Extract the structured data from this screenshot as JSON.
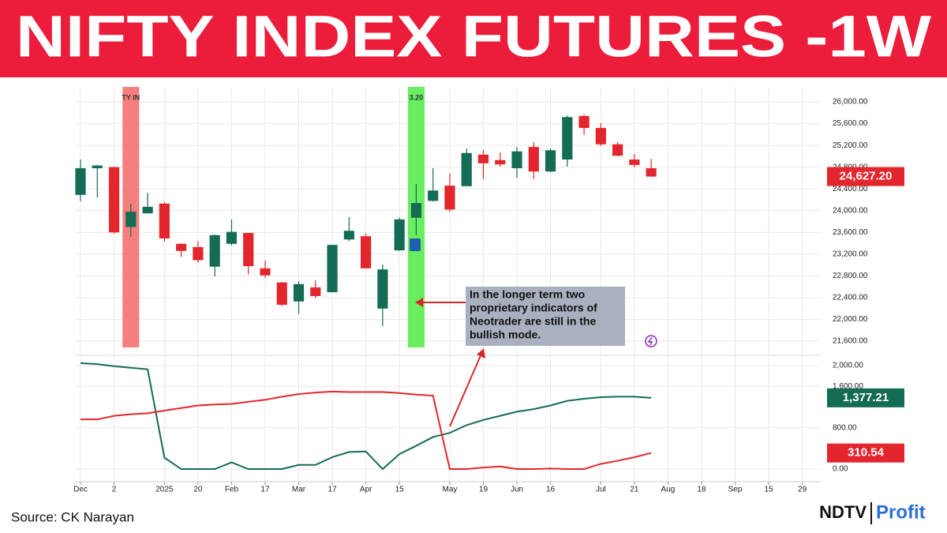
{
  "header": {
    "title": "NIFTY INDEX FUTURES -1W"
  },
  "chart_data": [
    {
      "type": "candlestick",
      "x": [
        0,
        1,
        2,
        3,
        4,
        5,
        6,
        7,
        8,
        9,
        10,
        11,
        12,
        13,
        14,
        15,
        16,
        17,
        18,
        19,
        20,
        21,
        22,
        23,
        24,
        25,
        26,
        27,
        28,
        29,
        30,
        31,
        32,
        33,
        34
      ],
      "open": [
        24290,
        24780,
        24800,
        23700,
        23950,
        24130,
        23390,
        23330,
        22970,
        23390,
        23590,
        22940,
        22680,
        22330,
        22590,
        22500,
        23470,
        23530,
        22200,
        23270,
        23870,
        24180,
        24460,
        24450,
        25030,
        24930,
        24780,
        25170,
        24720,
        24940,
        25740,
        25520,
        25220,
        24940,
        24780
      ],
      "high": [
        24940,
        24840,
        24810,
        24130,
        24330,
        24160,
        23400,
        23440,
        23560,
        23840,
        23590,
        23080,
        22690,
        22700,
        22720,
        23370,
        23880,
        23580,
        23010,
        23870,
        24490,
        24780,
        24680,
        25140,
        25110,
        25070,
        25170,
        25260,
        25140,
        25750,
        25770,
        25610,
        25260,
        25040,
        24950
      ],
      "low": [
        24170,
        24240,
        23580,
        23520,
        23950,
        23430,
        23150,
        23040,
        22790,
        23360,
        22830,
        22760,
        22240,
        22100,
        22390,
        22500,
        23440,
        22940,
        21880,
        23260,
        23550,
        24170,
        23980,
        24450,
        24580,
        24810,
        24600,
        24580,
        24710,
        24810,
        25400,
        25190,
        25000,
        24800,
        24620
      ],
      "close": [
        24780,
        24830,
        23600,
        23980,
        24070,
        23490,
        23260,
        23090,
        23550,
        23610,
        22980,
        22810,
        22270,
        22650,
        22430,
        23370,
        23630,
        22940,
        22920,
        23840,
        24140,
        24370,
        24020,
        25060,
        24870,
        24850,
        25090,
        24720,
        25110,
        25720,
        25520,
        25220,
        25010,
        24840,
        24627.2
      ],
      "close_labels": [
        null,
        null,
        null,
        null,
        null,
        null,
        null,
        null,
        null,
        null,
        null,
        null,
        null,
        null,
        null,
        null,
        null,
        null,
        null,
        null,
        null,
        null,
        null,
        null,
        null,
        null,
        null,
        null,
        null,
        null,
        null,
        null,
        null,
        null,
        "24,627.20"
      ],
      "up_color": "#146c55",
      "down_color": "#e3262d",
      "highlights": [
        {
          "x": 3,
          "color": "#f47070",
          "label": "TY IN"
        },
        {
          "x": 20,
          "color": "#58ec4e",
          "label": "3.20"
        }
      ],
      "xlim": [
        -0.33,
        44.1
      ],
      "ylim": [
        21340,
        26276
      ],
      "yticks": [
        {
          "value": 26000,
          "label": "26,000.00"
        },
        {
          "value": 25600,
          "label": "25,600.00"
        },
        {
          "value": 25200,
          "label": "25,200.00"
        },
        {
          "value": 24800,
          "label": "24,800.00"
        },
        {
          "value": 24400,
          "label": "24,400.00"
        },
        {
          "value": 24000,
          "label": "24,000.00"
        },
        {
          "value": 23600,
          "label": "23,600.00"
        },
        {
          "value": 23200,
          "label": "23,200.00"
        },
        {
          "value": 22800,
          "label": "22,800.00"
        },
        {
          "value": 22400,
          "label": "22,400.00"
        },
        {
          "value": 22000,
          "label": "22,000.00"
        },
        {
          "value": 21600,
          "label": "21,600.00"
        }
      ],
      "grid": true
    },
    {
      "type": "line",
      "x": [
        0,
        1,
        2,
        3,
        4,
        5,
        6,
        7,
        8,
        9,
        10,
        11,
        12,
        13,
        14,
        15,
        16,
        17,
        18,
        19,
        20,
        21,
        22,
        23,
        24,
        25,
        26,
        27,
        28,
        29,
        30,
        31,
        32,
        33,
        34
      ],
      "series": [
        {
          "color": "#146c55",
          "values": [
            2050,
            2030,
            1990,
            1960,
            1930,
            220,
            0,
            0,
            0,
            130,
            0,
            0,
            0,
            80,
            80,
            230,
            330,
            340,
            0,
            290,
            450,
            620,
            700,
            850,
            950,
            1030,
            1110,
            1160,
            1230,
            1320,
            1360,
            1390,
            1400,
            1400,
            1377.21
          ],
          "value_labels": [
            null,
            null,
            null,
            null,
            null,
            null,
            null,
            null,
            null,
            null,
            null,
            null,
            null,
            null,
            null,
            null,
            null,
            null,
            null,
            null,
            null,
            null,
            null,
            null,
            null,
            null,
            null,
            null,
            null,
            null,
            null,
            null,
            null,
            null,
            "1,377.21"
          ]
        },
        {
          "color": "#e3262d",
          "values": [
            960,
            960,
            1030,
            1060,
            1080,
            1130,
            1180,
            1230,
            1250,
            1260,
            1300,
            1340,
            1400,
            1450,
            1480,
            1500,
            1490,
            1490,
            1490,
            1470,
            1440,
            1420,
            0,
            0,
            30,
            50,
            0,
            0,
            10,
            0,
            0,
            100,
            160,
            230,
            310.54
          ],
          "value_labels": [
            null,
            null,
            null,
            null,
            null,
            null,
            null,
            null,
            null,
            null,
            null,
            null,
            null,
            null,
            null,
            null,
            null,
            null,
            null,
            null,
            null,
            null,
            null,
            null,
            null,
            null,
            null,
            null,
            null,
            null,
            null,
            null,
            null,
            null,
            "310.54"
          ]
        }
      ],
      "xlim": [
        -0.33,
        44.1
      ],
      "ylim": [
        -244,
        2200
      ],
      "yticks": [
        {
          "value": 2000,
          "label": "2,000.00"
        },
        {
          "value": 1600,
          "label": "1,600.00"
        },
        {
          "value": 800,
          "label": "800.00"
        },
        {
          "value": 0,
          "label": "0.00"
        }
      ],
      "xticks": [
        {
          "value": 0,
          "label": "Dec"
        },
        2,
        {
          "value": 5,
          "label": "2025"
        },
        {
          "value": 7,
          "label": "20"
        },
        {
          "value": 9,
          "label": "Feb"
        },
        {
          "value": 11,
          "label": "17"
        },
        {
          "value": 13,
          "label": "Mar"
        },
        {
          "value": 15,
          "label": "17"
        },
        {
          "value": 17,
          "label": "Apr"
        },
        {
          "value": 19,
          "label": "15"
        },
        {
          "value": 22,
          "label": "May"
        },
        {
          "value": 24,
          "label": "19"
        },
        {
          "value": 26,
          "label": "Jun"
        },
        {
          "value": 28,
          "label": "16"
        },
        {
          "value": 31,
          "label": "Jul"
        },
        {
          "value": 33,
          "label": "21"
        },
        {
          "value": 35,
          "label": "Aug"
        },
        {
          "value": 37,
          "label": "18"
        },
        {
          "value": 39,
          "label": "Sep"
        },
        {
          "value": 41,
          "label": "15"
        },
        {
          "value": 43,
          "label": "29"
        }
      ],
      "grid": true
    }
  ],
  "annotation": {
    "lines": [
      "In the longer term two",
      "proprietary indicators of",
      "Neotrader are still in the",
      "bullish mode."
    ]
  },
  "footer": {
    "source": "Source: CK Narayan",
    "logo": [
      "NDTV",
      "Profit"
    ]
  }
}
